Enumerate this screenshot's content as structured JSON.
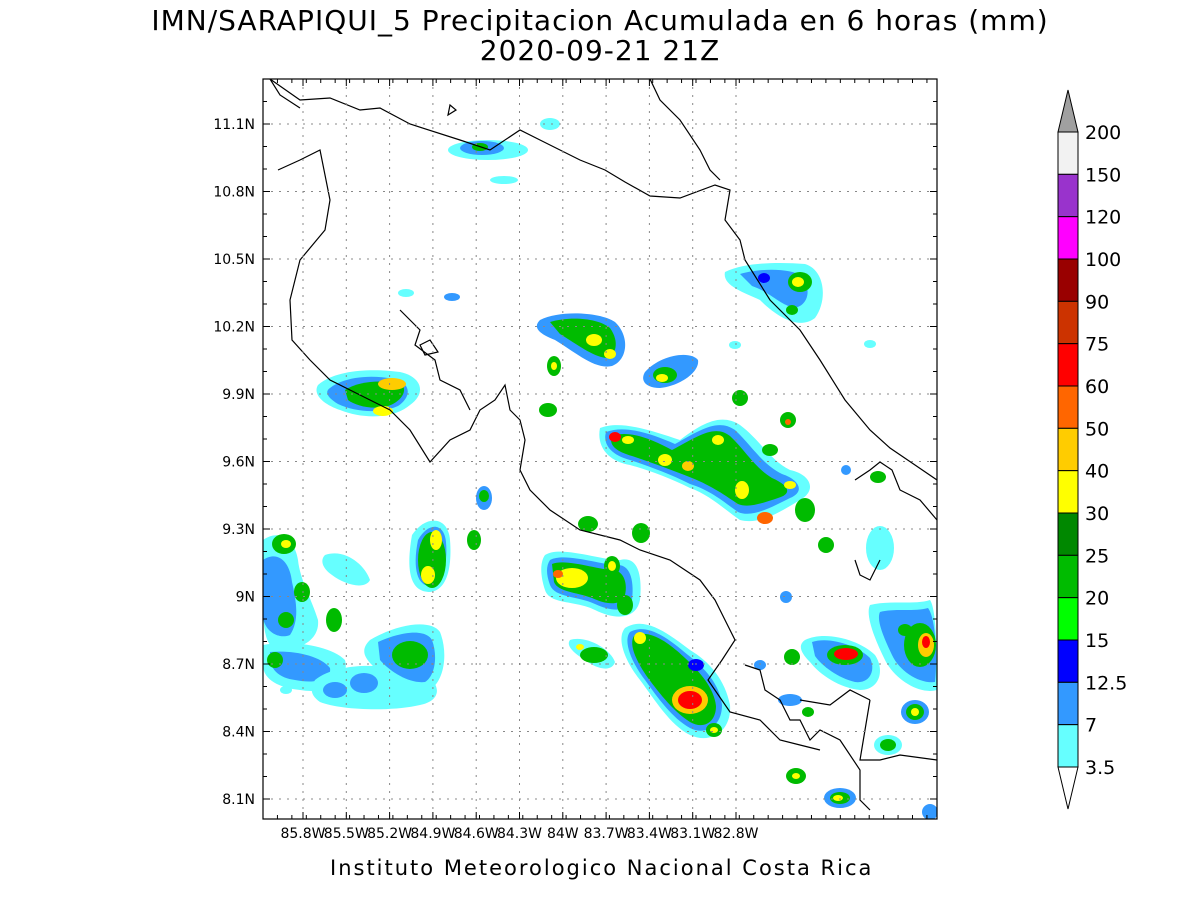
{
  "title": "IMN/SARAPIQUI_5 Precipitacion Acumulada en 6 horas (mm)",
  "subtitle": "2020-09-21 21Z",
  "footer": "Instituto Meteorologico Nacional Costa Rica",
  "lat_labels": [
    "11.1N",
    "10.8N",
    "10.5N",
    "10.2N",
    "9.9N",
    "9.6N",
    "9.3N",
    "9N",
    "8.7N",
    "8.4N",
    "8.1N"
  ],
  "lon_labels": [
    "85.8W",
    "85.5W",
    "85.2W",
    "84.9W",
    "84.6W",
    "84.3W",
    "84W",
    "83.7W",
    "83.4W",
    "83.1W",
    "82.8W"
  ],
  "colorbar": {
    "labels": [
      "200",
      "150",
      "120",
      "100",
      "90",
      "75",
      "60",
      "50",
      "40",
      "30",
      "25",
      "20",
      "15",
      "12.5",
      "7",
      "3.5"
    ],
    "colors": [
      "#f2f2f2",
      "#9933cc",
      "#ff00ff",
      "#990000",
      "#cc3300",
      "#ff0000",
      "#ff6600",
      "#ffcc00",
      "#ffff00",
      "#008800",
      "#00bb00",
      "#00ff00",
      "#0000ff",
      "#3399ff",
      "#66ffff"
    ],
    "top_color": "#a0a0a0"
  },
  "precip_colors": {
    "c3_5": "#66ffff",
    "c7": "#3399ff",
    "c12_5": "#0000ff",
    "c15": "#00ff00",
    "c20": "#00bb00",
    "c25": "#008800",
    "c30": "#ffff00",
    "c40": "#ffcc00",
    "c50": "#ff6600",
    "c60": "#ff0000",
    "c75": "#cc3300"
  }
}
